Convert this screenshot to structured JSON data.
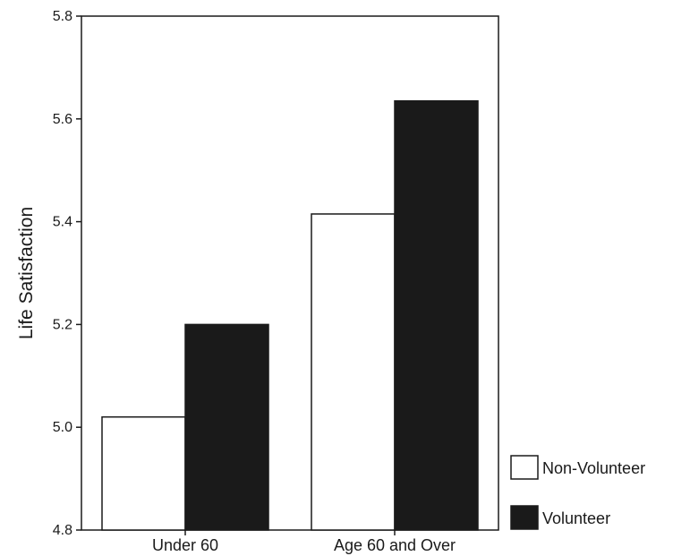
{
  "chart_data": {
    "type": "bar",
    "title": "",
    "xlabel": "",
    "ylabel": "Life Satisfaction",
    "ylim": [
      4.8,
      5.8
    ],
    "yticks": [
      "4.8",
      "5.0",
      "5.2",
      "5.4",
      "5.6",
      "5.8"
    ],
    "grid": false,
    "legend_position": "bottom-right",
    "categories": [
      "Under 60",
      "Age 60 and Over"
    ],
    "series": [
      {
        "name": "Non-Volunteer",
        "color": "#ffffff",
        "values": [
          5.02,
          5.415
        ]
      },
      {
        "name": "Volunteer",
        "color": "#1a1a1a",
        "values": [
          5.2,
          5.635
        ]
      }
    ]
  }
}
